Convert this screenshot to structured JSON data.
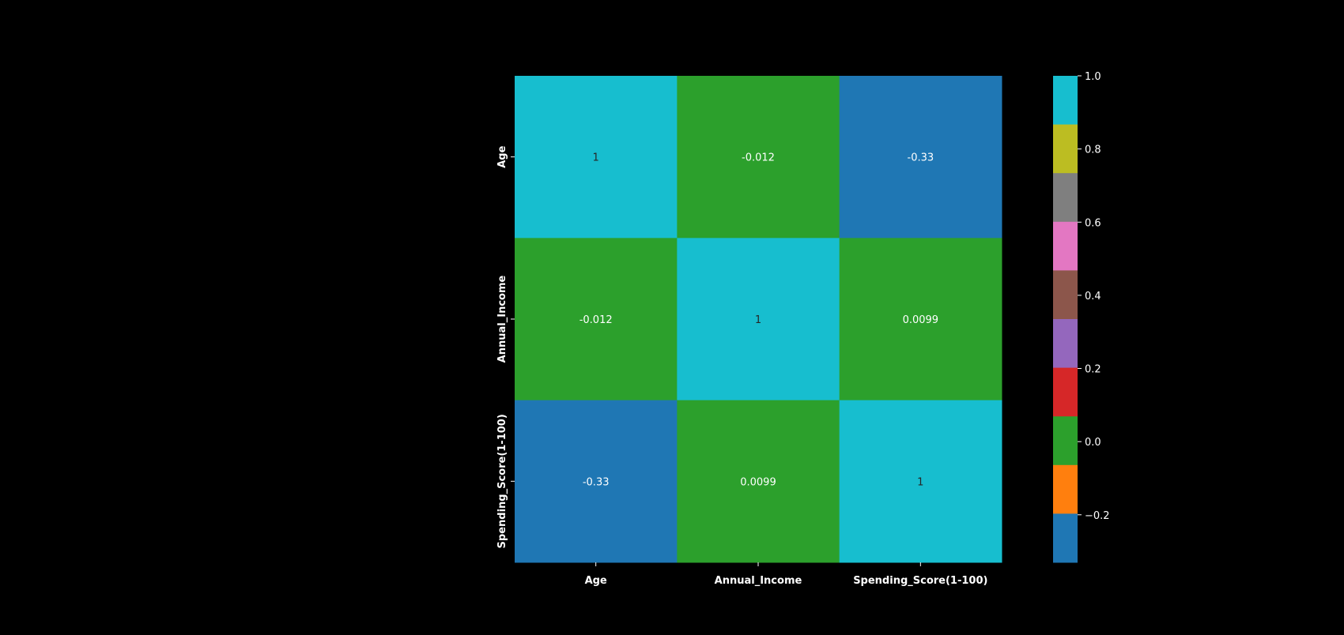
{
  "chart_data": {
    "type": "heatmap",
    "title": "",
    "xlabel": "",
    "ylabel": "",
    "x_categories": [
      "Age",
      "Annual_Income",
      "Spending_Score(1-100)"
    ],
    "y_categories": [
      "Age",
      "Annual_Income",
      "Spending_Score(1-100)"
    ],
    "values": [
      [
        1,
        -0.012,
        -0.33
      ],
      [
        -0.012,
        1,
        0.0099
      ],
      [
        -0.33,
        0.0099,
        1
      ]
    ],
    "cell_labels": [
      [
        "1",
        "-0.012",
        "-0.33"
      ],
      [
        "-0.012",
        "1",
        "0.0099"
      ],
      [
        "-0.33",
        "0.0099",
        "1"
      ]
    ],
    "colorbar": {
      "vmin": -0.33,
      "vmax": 1.0,
      "ticks": [
        1.0,
        0.8,
        0.6,
        0.4,
        0.2,
        0.0,
        -0.2
      ],
      "tick_labels": [
        "1.0",
        "0.8",
        "0.6",
        "0.4",
        "0.2",
        "0.0",
        "−0.2"
      ],
      "colors": [
        "#1f77b4",
        "#ff7f0e",
        "#2ca02c",
        "#d62728",
        "#9467bd",
        "#8c564b",
        "#e377c2",
        "#7f7f7f",
        "#bcbd22",
        "#17becf"
      ]
    },
    "colors": {
      "background": "#000000",
      "text": "#ffffff",
      "dark_text": "#262626"
    }
  }
}
